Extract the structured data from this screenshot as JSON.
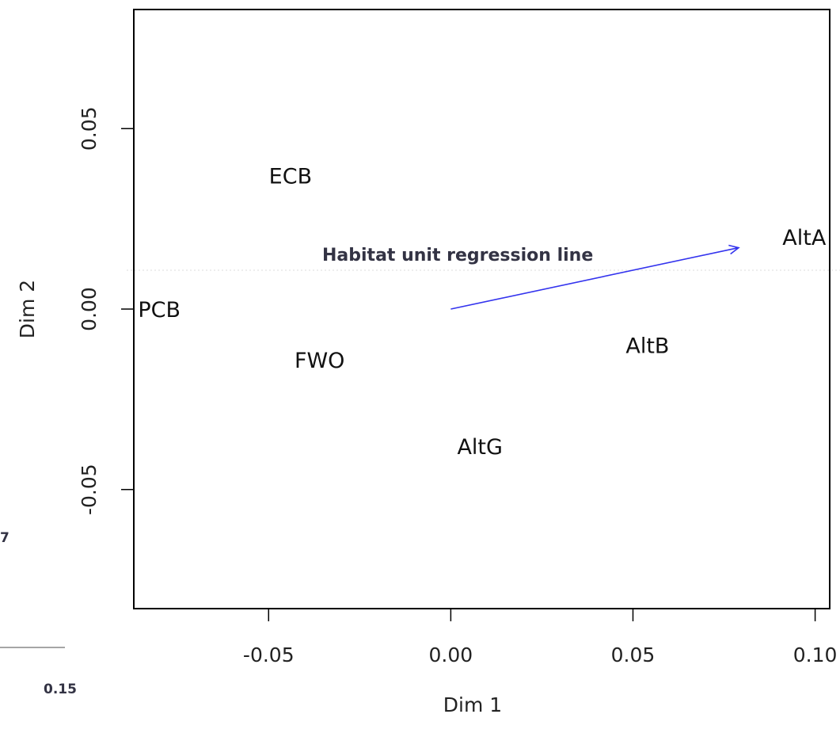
{
  "chart_data": {
    "type": "scatter",
    "xlabel": "Dim 1",
    "ylabel": "Dim 2",
    "xlim": [
      -0.087,
      0.104
    ],
    "ylim": [
      -0.083,
      0.083
    ],
    "xticks": [
      -0.05,
      0.0,
      0.05,
      0.1
    ],
    "xtick_labels": [
      "-0.05",
      "0.00",
      "0.05",
      "0.10"
    ],
    "yticks": [
      -0.05,
      0.0,
      0.05
    ],
    "ytick_labels": [
      "-0.05",
      "0.00",
      "0.05"
    ],
    "points": [
      {
        "label": "ECB",
        "x": -0.044,
        "y": 0.037
      },
      {
        "label": "AltA",
        "x": 0.097,
        "y": 0.02
      },
      {
        "label": "PCB",
        "x": -0.08,
        "y": 0.0
      },
      {
        "label": "AltB",
        "x": 0.054,
        "y": -0.01
      },
      {
        "label": "FWO",
        "x": -0.036,
        "y": -0.014
      },
      {
        "label": "AltG",
        "x": 0.008,
        "y": -0.038
      }
    ],
    "arrow": {
      "x0": 0.0,
      "y0": 0.0,
      "x1": 0.079,
      "y1": 0.017,
      "color": "#3333ee"
    },
    "annotation": "Habitat unit regression line",
    "grid": false,
    "legend": "none"
  },
  "edge_fragments": {
    "left_number": "7",
    "bottom_number": "0.15"
  }
}
